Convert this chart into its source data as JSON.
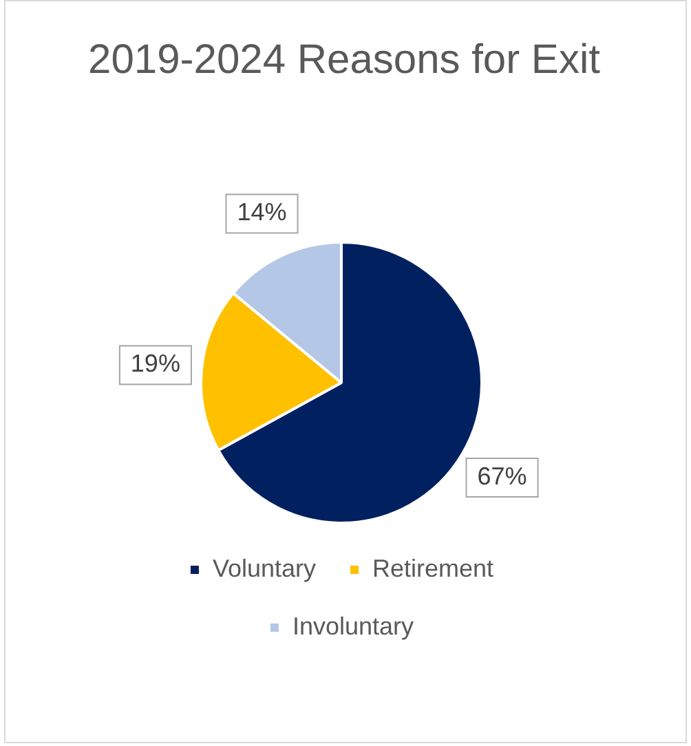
{
  "chart_data": {
    "type": "pie",
    "title": "2019-2024 Reasons for Exit",
    "categories": [
      "Voluntary",
      "Retirement",
      "Involuntary"
    ],
    "values": [
      67,
      19,
      14
    ],
    "colors": [
      "#002060",
      "#ffc000",
      "#b4c7e7"
    ],
    "value_labels": [
      "67%",
      "19%",
      "14%"
    ],
    "legend": "bottom"
  }
}
